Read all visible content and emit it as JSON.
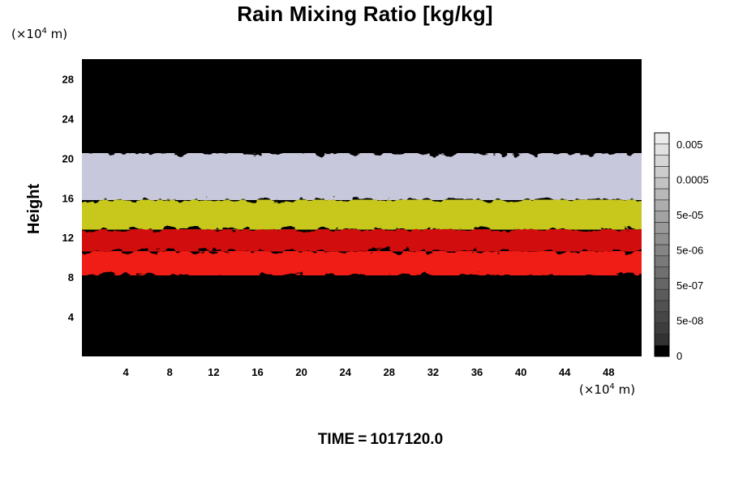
{
  "chart_data": {
    "type": "heatmap",
    "title": "Rain Mixing Ratio [kg/kg]",
    "ylabel": "Height",
    "xunit": {
      "prefix": "(×10",
      "exp": "4",
      "suffix": " m)"
    },
    "yunit": {
      "prefix": "(×10",
      "exp": "4",
      "suffix": " m)"
    },
    "xlim": [
      0,
      51
    ],
    "ylim": [
      0,
      30
    ],
    "x_ticks": [
      4,
      8,
      12,
      16,
      20,
      24,
      28,
      32,
      36,
      40,
      44,
      48
    ],
    "y_ticks": [
      4,
      8,
      12,
      16,
      20,
      24,
      28
    ],
    "bands": [
      {
        "name": "black-background",
        "y_from": 0,
        "y_to": 30,
        "color": "#000000"
      },
      {
        "name": "lower-red-blobs",
        "y_from": 8.2,
        "y_to": 10.6,
        "color": "#f01e14"
      },
      {
        "name": "red-layer",
        "y_from": 10.6,
        "y_to": 12.8,
        "color": "#d20a0a"
      },
      {
        "name": "yellow-layer",
        "y_from": 12.8,
        "y_to": 15.8,
        "color": "#c8c81e"
      },
      {
        "name": "bluish-white-layer",
        "y_from": 15.8,
        "y_to": 20.5,
        "color": "#c8c8dc"
      }
    ],
    "colorbar": {
      "labels": [
        "0.005",
        "0.0005",
        "5e-05",
        "5e-06",
        "5e-07",
        "5e-08",
        "0"
      ]
    },
    "footer": {
      "label": "TIME",
      "eq": "=",
      "value": "1017120.0"
    }
  }
}
